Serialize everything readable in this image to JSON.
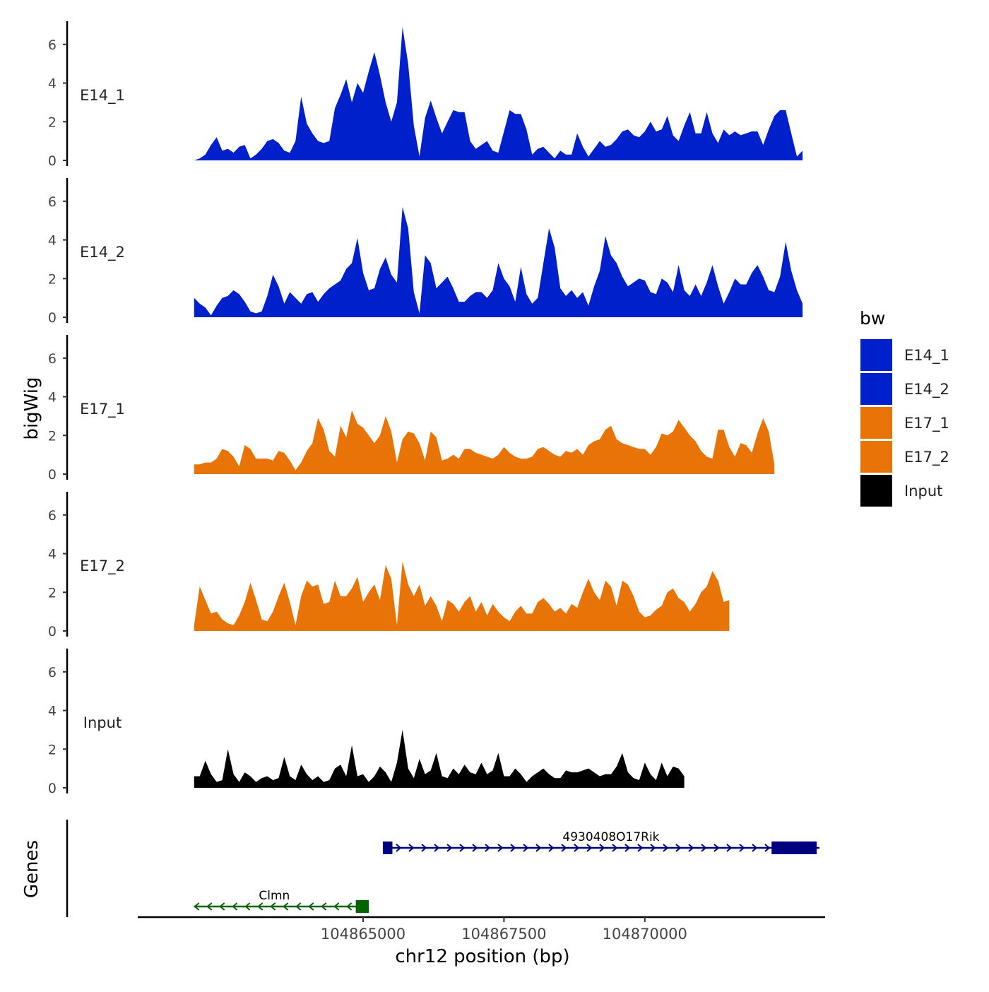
{
  "chart_data": {
    "type": "area",
    "ylabel": "bigWig",
    "xlabel": "chr12 position (bp)",
    "ylim": [
      0,
      7.2
    ],
    "y_ticks": [
      0,
      2,
      4,
      6
    ],
    "x_range": [
      104861000,
      104873200
    ],
    "x_ticks": [
      {
        "value": 104865000,
        "label": "104865000"
      },
      {
        "value": 104867500,
        "label": "104867500"
      },
      {
        "value": 104870000,
        "label": "104870000"
      }
    ],
    "track_start": 104862000,
    "track_step": 100,
    "legend": {
      "title": "bw",
      "position": "right",
      "entries": [
        {
          "label": "E14_1",
          "color": "#0020CC"
        },
        {
          "label": "E14_2",
          "color": "#0020CC"
        },
        {
          "label": "E17_1",
          "color": "#E87306"
        },
        {
          "label": "E17_2",
          "color": "#E87306"
        },
        {
          "label": "Input",
          "color": "#000000"
        }
      ]
    },
    "series": [
      {
        "name": "E14_1",
        "color": "#0020CC",
        "values": [
          0,
          0.1,
          0.3,
          0.8,
          1.2,
          0.5,
          0.6,
          0.4,
          0.7,
          0.8,
          0.1,
          0.3,
          0.6,
          1.0,
          1.1,
          0.9,
          0.5,
          0.4,
          1.0,
          3.3,
          1.9,
          1.4,
          1.0,
          0.9,
          1.0,
          2.7,
          3.4,
          4.2,
          3.0,
          4.0,
          3.5,
          4.6,
          5.6,
          4.4,
          3.0,
          2.0,
          3.0,
          6.9,
          5.0,
          1.8,
          0.2,
          2.2,
          3.1,
          2.2,
          1.4,
          2.0,
          2.6,
          2.5,
          2.5,
          1.0,
          0.6,
          0.8,
          1.0,
          0.5,
          0.4,
          1.5,
          2.6,
          2.4,
          2.4,
          1.6,
          0.3,
          0.6,
          0.7,
          0.4,
          0.1,
          0.5,
          0.3,
          0.3,
          1.4,
          0.7,
          0.2,
          0.6,
          1.0,
          0.7,
          0.8,
          1.1,
          1.5,
          1.6,
          1.3,
          1.2,
          1.5,
          2.0,
          1.5,
          1.6,
          2.3,
          1.3,
          1.0,
          1.8,
          2.5,
          1.4,
          1.4,
          2.5,
          1.4,
          0.9,
          1.6,
          1.3,
          1.5,
          1.3,
          1.4,
          1.5,
          1.5,
          0.8,
          1.6,
          2.3,
          2.6,
          2.6,
          1.4,
          0.2,
          0.5
        ]
      },
      {
        "name": "E14_2",
        "color": "#0020CC",
        "values": [
          1.0,
          0.7,
          0.5,
          0.1,
          0.6,
          1.0,
          1.1,
          1.4,
          1.2,
          0.8,
          0.3,
          0.2,
          0.3,
          1.1,
          2.2,
          1.6,
          0.7,
          1.3,
          1.0,
          0.7,
          1.2,
          1.3,
          0.8,
          1.2,
          1.5,
          1.7,
          1.9,
          2.5,
          2.8,
          4.1,
          2.3,
          1.4,
          1.5,
          2.5,
          3.1,
          2.2,
          1.8,
          5.7,
          4.6,
          1.3,
          0.2,
          3.2,
          2.8,
          1.5,
          1.8,
          2.1,
          1.5,
          0.8,
          0.8,
          1.1,
          1.3,
          1.3,
          1.0,
          1.4,
          2.8,
          2.0,
          1.6,
          0.8,
          2.6,
          1.2,
          0.7,
          1.0,
          2.8,
          4.6,
          3.6,
          1.5,
          1.1,
          1.4,
          1.0,
          1.3,
          0.6,
          1.6,
          2.4,
          4.2,
          3.2,
          2.8,
          2.1,
          1.6,
          1.8,
          2.0,
          1.9,
          1.3,
          1.2,
          2.0,
          1.8,
          1.3,
          2.7,
          1.4,
          1.1,
          1.7,
          1.1,
          1.8,
          2.7,
          1.6,
          0.7,
          1.3,
          2.0,
          1.7,
          1.7,
          2.3,
          2.7,
          2.1,
          1.4,
          1.3,
          2.1,
          3.9,
          2.4,
          1.4,
          0.7
        ]
      },
      {
        "name": "E17_1",
        "color": "#E87306",
        "values": [
          0.5,
          0.5,
          0.6,
          0.6,
          0.8,
          1.3,
          1.2,
          0.9,
          0.4,
          1.5,
          1.3,
          0.8,
          0.8,
          0.8,
          0.7,
          1.2,
          1.1,
          0.7,
          0.2,
          0.6,
          1.2,
          1.6,
          2.9,
          2.3,
          1.2,
          0.9,
          2.5,
          1.9,
          3.3,
          2.6,
          2.4,
          2.0,
          1.6,
          2.0,
          3.0,
          2.2,
          0.6,
          1.8,
          2.2,
          2.1,
          1.6,
          0.7,
          2.2,
          1.9,
          0.7,
          0.8,
          1.0,
          0.8,
          1.3,
          1.3,
          1.1,
          1.0,
          0.9,
          0.8,
          1.0,
          1.4,
          1.1,
          0.9,
          0.8,
          0.8,
          0.9,
          1.3,
          1.4,
          1.2,
          1.0,
          0.9,
          1.2,
          1.1,
          1.3,
          1.0,
          1.5,
          1.7,
          1.8,
          2.3,
          2.5,
          1.8,
          1.6,
          1.5,
          1.4,
          1.3,
          1.3,
          1.0,
          1.4,
          2.1,
          2.0,
          2.2,
          2.8,
          2.4,
          2.0,
          1.7,
          1.2,
          0.9,
          0.8,
          2.3,
          2.3,
          1.4,
          0.9,
          1.6,
          1.5,
          1.1,
          2.1,
          2.9,
          2.2,
          0.5
        ]
      },
      {
        "name": "E17_2",
        "color": "#E87306",
        "values": [
          0.3,
          2.3,
          1.6,
          0.9,
          1.0,
          0.6,
          0.4,
          0.3,
          0.8,
          1.5,
          2.5,
          1.6,
          0.6,
          0.5,
          1.0,
          1.8,
          2.5,
          1.5,
          0.3,
          1.8,
          2.6,
          2.3,
          2.4,
          1.4,
          1.5,
          2.6,
          1.8,
          1.8,
          2.2,
          2.8,
          1.5,
          2.0,
          2.4,
          1.6,
          3.4,
          2.7,
          0.3,
          3.6,
          2.4,
          1.8,
          2.4,
          1.3,
          1.8,
          1.3,
          0.5,
          1.6,
          1.4,
          1.0,
          1.5,
          1.8,
          1.0,
          1.5,
          0.8,
          1.4,
          1.0,
          0.7,
          0.5,
          1.0,
          1.3,
          0.9,
          0.9,
          1.5,
          1.7,
          1.4,
          1.0,
          1.2,
          0.9,
          1.4,
          1.2,
          2.0,
          2.7,
          2.0,
          1.6,
          2.6,
          2.3,
          1.3,
          2.6,
          2.4,
          1.8,
          1.0,
          0.7,
          0.8,
          1.1,
          1.3,
          2.0,
          2.2,
          1.7,
          1.5,
          1.0,
          1.4,
          2.0,
          2.3,
          3.1,
          2.6,
          1.5,
          1.6
        ]
      },
      {
        "name": "Input",
        "color": "#000000",
        "values": [
          0.6,
          0.6,
          1.4,
          0.7,
          0.3,
          0.4,
          2.0,
          0.7,
          0.3,
          0.8,
          0.6,
          0.3,
          0.5,
          0.6,
          0.4,
          0.5,
          1.6,
          0.6,
          0.4,
          1.2,
          0.7,
          0.4,
          0.6,
          0.3,
          0.4,
          1.0,
          1.2,
          0.6,
          2.2,
          0.6,
          0.7,
          0.3,
          0.6,
          1.1,
          0.8,
          0.3,
          1.3,
          3.0,
          1.0,
          0.5,
          1.5,
          0.7,
          0.9,
          1.8,
          0.6,
          0.5,
          1.0,
          0.7,
          1.2,
          0.8,
          0.7,
          1.3,
          0.7,
          0.9,
          1.8,
          0.6,
          0.6,
          1.0,
          0.7,
          0.3,
          0.6,
          0.8,
          1.0,
          0.7,
          0.5,
          0.5,
          0.9,
          0.8,
          0.8,
          0.9,
          1.0,
          0.8,
          0.6,
          0.7,
          0.7,
          1.1,
          1.8,
          0.8,
          0.5,
          0.4,
          1.3,
          0.7,
          0.4,
          1.3,
          0.6,
          1.1,
          1.0,
          0.6
        ]
      }
    ],
    "genes": {
      "label": "Genes",
      "items": [
        {
          "name": "4930408O17Rik",
          "strand": "+",
          "color": "#000080",
          "start": 104865350,
          "end": 104873100,
          "exons": [
            [
              104865350,
              104865520
            ],
            [
              104872250,
              104873050
            ]
          ]
        },
        {
          "name": "Clmn",
          "strand": "-",
          "color": "#006400",
          "start": 104862000,
          "end": 104865100,
          "exons": [
            [
              104864870,
              104865100
            ]
          ]
        }
      ]
    }
  }
}
